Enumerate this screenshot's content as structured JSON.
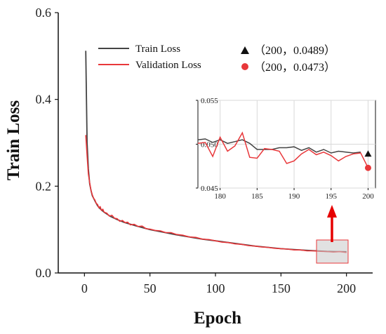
{
  "chart_data": {
    "type": "line",
    "title": "",
    "xlabel": "Epoch",
    "ylabel": "Train Loss",
    "xlim": [
      -20,
      220
    ],
    "ylim": [
      0.0,
      0.6
    ],
    "x_ticks": [
      0,
      50,
      100,
      150,
      200
    ],
    "y_ticks": [
      0.0,
      0.2,
      0.4,
      0.6
    ],
    "y_tick_labels": [
      "0.0",
      "0.2",
      "0.4",
      "0.6"
    ],
    "grid": false,
    "legend_position": "top-left",
    "series": [
      {
        "name": "Train Loss",
        "color": "#444444",
        "x": [
          1,
          2,
          3,
          4,
          5,
          6,
          8,
          10,
          12,
          15,
          20,
          25,
          30,
          40,
          50,
          60,
          70,
          80,
          90,
          100,
          110,
          120,
          130,
          140,
          150,
          160,
          170,
          180,
          185,
          190,
          195,
          200
        ],
        "y": [
          0.512,
          0.3,
          0.24,
          0.205,
          0.19,
          0.178,
          0.166,
          0.155,
          0.148,
          0.14,
          0.13,
          0.123,
          0.117,
          0.108,
          0.1,
          0.094,
          0.088,
          0.083,
          0.078,
          0.074,
          0.07,
          0.066,
          0.062,
          0.059,
          0.056,
          0.054,
          0.052,
          0.0505,
          0.0497,
          0.0494,
          0.0492,
          0.0489
        ]
      },
      {
        "name": "Validation Loss",
        "color": "#e8373a",
        "x": [
          1,
          2,
          3,
          4,
          5,
          6,
          7,
          8,
          9,
          10,
          11,
          12,
          13,
          14,
          15,
          17,
          19,
          21,
          23,
          25,
          27,
          29,
          31,
          33,
          35,
          38,
          41,
          44,
          47,
          50,
          54,
          58,
          62,
          66,
          70,
          75,
          80,
          85,
          90,
          95,
          100,
          105,
          110,
          115,
          120,
          125,
          130,
          135,
          140,
          145,
          150,
          155,
          160,
          165,
          170,
          175,
          180,
          185,
          190,
          195,
          200
        ],
        "y": [
          0.318,
          0.27,
          0.228,
          0.208,
          0.19,
          0.18,
          0.172,
          0.168,
          0.16,
          0.158,
          0.15,
          0.153,
          0.144,
          0.147,
          0.14,
          0.138,
          0.131,
          0.133,
          0.126,
          0.125,
          0.119,
          0.121,
          0.116,
          0.117,
          0.111,
          0.112,
          0.107,
          0.108,
          0.102,
          0.101,
          0.098,
          0.097,
          0.093,
          0.093,
          0.089,
          0.087,
          0.083,
          0.082,
          0.078,
          0.077,
          0.074,
          0.071,
          0.07,
          0.067,
          0.066,
          0.063,
          0.062,
          0.06,
          0.059,
          0.057,
          0.056,
          0.055,
          0.053,
          0.053,
          0.051,
          0.051,
          0.0498,
          0.0493,
          0.0482,
          0.0491,
          0.0473
        ]
      }
    ],
    "markers": [
      {
        "symbol": "triangle",
        "color": "#111111",
        "label": "（200，0.0489）",
        "x": 200,
        "y": 0.0489
      },
      {
        "symbol": "circle",
        "color": "#e8373a",
        "label": "（200，0.0473）",
        "x": 200,
        "y": 0.0473
      }
    ],
    "inset": {
      "xlim": [
        177,
        201
      ],
      "ylim": [
        0.045,
        0.055
      ],
      "x_ticks": [
        180,
        185,
        190,
        195,
        200
      ],
      "y_ticks": [
        0.045,
        0.05,
        0.055
      ],
      "y_tick_labels": [
        "0.045",
        "0.050",
        "0.055"
      ],
      "grid": true,
      "train": {
        "x": [
          177,
          178,
          179,
          180,
          181,
          182,
          183,
          184,
          185,
          186,
          187,
          188,
          189,
          190,
          191,
          192,
          193,
          194,
          195,
          196,
          197,
          198,
          199
        ],
        "y": [
          0.0505,
          0.0506,
          0.0502,
          0.0505,
          0.0501,
          0.0503,
          0.0505,
          0.0501,
          0.0494,
          0.0494,
          0.0494,
          0.0496,
          0.0496,
          0.0497,
          0.0493,
          0.0496,
          0.0491,
          0.0494,
          0.049,
          0.0492,
          0.0491,
          0.049,
          0.0491
        ]
      },
      "validation": {
        "x": [
          177,
          178,
          179,
          180,
          181,
          182,
          183,
          184,
          185,
          186,
          187,
          188,
          189,
          190,
          191,
          192,
          193,
          194,
          195,
          196,
          197,
          198,
          199,
          200
        ],
        "y": [
          0.0501,
          0.0502,
          0.0486,
          0.0508,
          0.0492,
          0.0498,
          0.0513,
          0.0485,
          0.0484,
          0.0495,
          0.0494,
          0.0492,
          0.0478,
          0.0481,
          0.0489,
          0.0494,
          0.0488,
          0.0491,
          0.0487,
          0.0481,
          0.0486,
          0.0489,
          0.049,
          0.0473
        ]
      }
    }
  }
}
